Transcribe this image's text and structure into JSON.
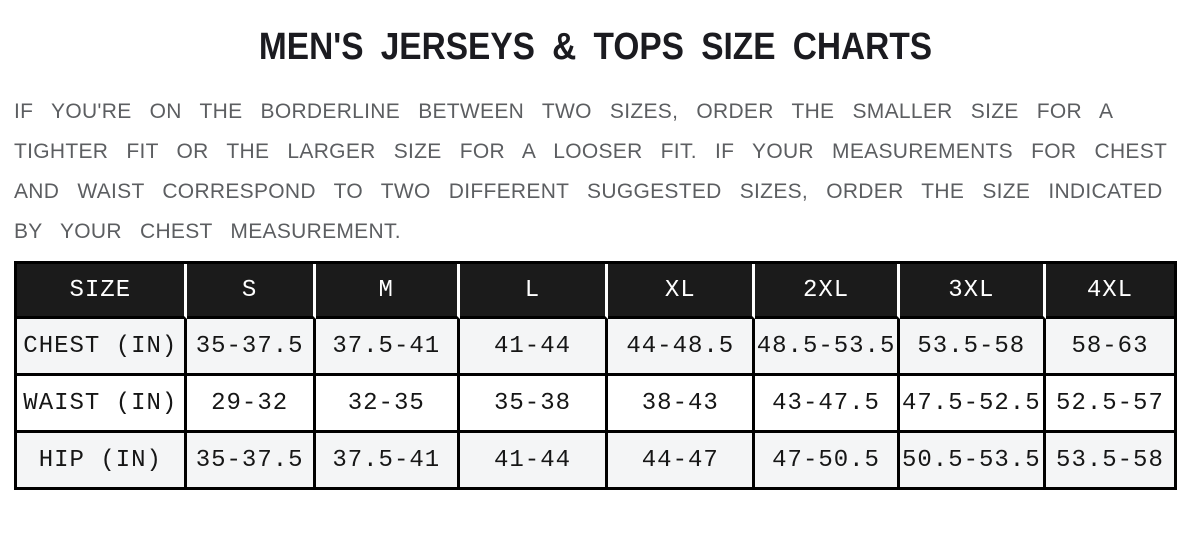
{
  "page": {
    "title": "MEN'S JERSEYS & TOPS SIZE CHARTS"
  },
  "intro": {
    "full_text": "IF YOU'RE ON THE BORDERLINE BETWEEN TWO SIZES, ORDER THE SMALLER SIZE FOR A TIGHTER FIT OR THE LARGER SIZE FOR A LOOSER FIT. IF YOUR MEASUREMENTS FOR CHEST AND WAIST CORRESPOND TO TWO DIFFERENT SUGGESTED SIZES, ORDER THE SIZE INDICATED BY YOUR CHEST MEASUREMENT.",
    "lines": [
      "IF YOU'RE ON THE BORDERLINE BETWEEN TWO SIZES, ORDER THE SMALLER SIZE FOR A",
      "TIGHTER FIT OR THE LARGER SIZE FOR A LOOSER FIT. IF YOUR MEASUREMENTS FOR CHEST",
      "AND WAIST CORRESPOND TO TWO DIFFERENT SUGGESTED SIZES, ORDER THE SIZE INDICATED",
      "BY YOUR CHEST MEASUREMENT."
    ]
  },
  "size_chart": {
    "columns": [
      "SIZE",
      "S",
      "M",
      "L",
      "XL",
      "2XL",
      "3XL",
      "4XL"
    ],
    "rows": [
      {
        "label": "CHEST (IN)",
        "values": [
          "35-37.5",
          "37.5-41",
          "41-44",
          "44-48.5",
          "48.5-53.5",
          "53.5-58",
          "58-63"
        ]
      },
      {
        "label": "WAIST (IN)",
        "values": [
          "29-32",
          "32-35",
          "35-38",
          "38-43",
          "43-47.5",
          "47.5-52.5",
          "52.5-57"
        ]
      },
      {
        "label": "HIP (IN)",
        "values": [
          "35-37.5",
          "37.5-41",
          "41-44",
          "44-47",
          "47-50.5",
          "50.5-53.5",
          "53.5-58"
        ]
      }
    ]
  },
  "colors": {
    "header_background": "#1b1b1b",
    "header_text": "#ffffff",
    "striped_row_background": "#f4f5f6",
    "table_border": "#000000",
    "intro_text": "#5c5e61",
    "title_text": "#1b1b20"
  }
}
